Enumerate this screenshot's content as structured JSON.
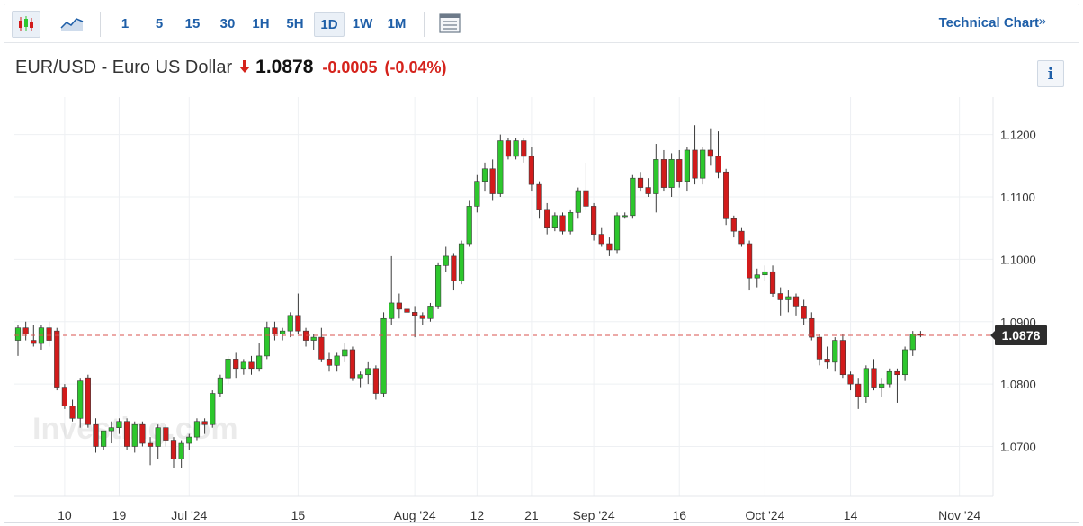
{
  "toolbar": {
    "timeframes": [
      "1",
      "5",
      "15",
      "30",
      "1H",
      "5H",
      "1D",
      "1W",
      "1M"
    ],
    "active_timeframe": "1D",
    "icons": [
      "candlestick-icon",
      "area-chart-icon",
      "data-table-icon"
    ],
    "technical_chart_label": "Technical Chart",
    "technical_chart_chevron": "»"
  },
  "header": {
    "instrument": "EUR/USD - Euro US Dollar",
    "direction_icon": "down-arrow-icon",
    "last_price": "1.0878",
    "change": "-0.0005",
    "change_pct": "(-0.04%)",
    "info_label": "i"
  },
  "watermark": "Investing.com",
  "colors": {
    "up": "#2dc72d",
    "down": "#d21b1b",
    "price_line": "#d9534f",
    "link": "#1f5fa8"
  },
  "chart_data": {
    "type": "candlestick",
    "interval": "1D",
    "ylim": [
      1.062,
      1.126
    ],
    "y_ticks": [
      "1.0700",
      "1.0800",
      "1.0900",
      "1.1000",
      "1.1100",
      "1.1200"
    ],
    "current_price_label": "1.0878",
    "current_price": 1.0878,
    "x_labels": [
      {
        "label": "10",
        "index": 6
      },
      {
        "label": "19",
        "index": 13
      },
      {
        "label": "Jul '24",
        "index": 22
      },
      {
        "label": "15",
        "index": 36
      },
      {
        "label": "Aug '24",
        "index": 51
      },
      {
        "label": "12",
        "index": 59
      },
      {
        "label": "21",
        "index": 66
      },
      {
        "label": "Sep '24",
        "index": 74
      },
      {
        "label": "16",
        "index": 85
      },
      {
        "label": "Oct '24",
        "index": 96
      },
      {
        "label": "14",
        "index": 107
      },
      {
        "label": "Nov '24",
        "index": 121
      }
    ],
    "candles": [
      [
        1.087,
        1.0895,
        1.0845,
        1.089
      ],
      [
        1.089,
        1.09,
        1.087,
        1.088
      ],
      [
        1.087,
        1.0895,
        1.086,
        1.0865
      ],
      [
        1.0865,
        1.0895,
        1.0855,
        1.089
      ],
      [
        1.089,
        1.09,
        1.086,
        1.087
      ],
      [
        1.0885,
        1.089,
        1.079,
        1.0795
      ],
      [
        1.0795,
        1.08,
        1.076,
        1.0765
      ],
      [
        1.0765,
        1.0775,
        1.074,
        1.0745
      ],
      [
        1.0745,
        1.081,
        1.073,
        1.0805
      ],
      [
        1.081,
        1.0815,
        1.073,
        1.0735
      ],
      [
        1.0735,
        1.0745,
        1.069,
        1.07
      ],
      [
        1.07,
        1.0725,
        1.0695,
        1.0725
      ],
      [
        1.0725,
        1.074,
        1.0705,
        1.073
      ],
      [
        1.073,
        1.0745,
        1.072,
        1.074
      ],
      [
        1.074,
        1.0745,
        1.0695,
        1.07
      ],
      [
        1.07,
        1.074,
        1.069,
        1.0735
      ],
      [
        1.0735,
        1.074,
        1.07,
        1.0705
      ],
      [
        1.0705,
        1.0715,
        1.067,
        1.07
      ],
      [
        1.07,
        1.0735,
        1.068,
        1.073
      ],
      [
        1.073,
        1.0735,
        1.07,
        1.071
      ],
      [
        1.071,
        1.0715,
        1.0665,
        1.068
      ],
      [
        1.068,
        1.071,
        1.0665,
        1.0705
      ],
      [
        1.0705,
        1.072,
        1.0695,
        1.0715
      ],
      [
        1.0715,
        1.0745,
        1.071,
        1.074
      ],
      [
        1.074,
        1.0745,
        1.072,
        1.0735
      ],
      [
        1.0735,
        1.079,
        1.073,
        1.0785
      ],
      [
        1.0785,
        1.0815,
        1.078,
        1.081
      ],
      [
        1.081,
        1.0845,
        1.08,
        1.084
      ],
      [
        1.084,
        1.085,
        1.081,
        1.0825
      ],
      [
        1.0825,
        1.084,
        1.0815,
        1.0835
      ],
      [
        1.0835,
        1.0845,
        1.0815,
        1.0825
      ],
      [
        1.0825,
        1.0865,
        1.082,
        1.0845
      ],
      [
        1.0845,
        1.09,
        1.084,
        1.089
      ],
      [
        1.089,
        1.09,
        1.087,
        1.088
      ],
      [
        1.088,
        1.089,
        1.087,
        1.0885
      ],
      [
        1.0885,
        1.0915,
        1.0875,
        1.091
      ],
      [
        1.091,
        1.0945,
        1.088,
        1.0885
      ],
      [
        1.0885,
        1.089,
        1.086,
        1.087
      ],
      [
        1.087,
        1.088,
        1.0855,
        1.0875
      ],
      [
        1.0875,
        1.089,
        1.0835,
        1.084
      ],
      [
        1.084,
        1.085,
        1.082,
        1.083
      ],
      [
        1.083,
        1.085,
        1.082,
        1.0845
      ],
      [
        1.0845,
        1.0865,
        1.0835,
        1.0855
      ],
      [
        1.0855,
        1.086,
        1.0805,
        1.081
      ],
      [
        1.081,
        1.082,
        1.0795,
        1.0815
      ],
      [
        1.0815,
        1.0835,
        1.08,
        1.0825
      ],
      [
        1.0825,
        1.083,
        1.0775,
        1.0785
      ],
      [
        1.0785,
        1.0915,
        1.078,
        1.0905
      ],
      [
        1.0905,
        1.1005,
        1.0895,
        1.093
      ],
      [
        1.093,
        1.0945,
        1.0905,
        1.092
      ],
      [
        1.092,
        1.0935,
        1.089,
        1.0915
      ],
      [
        1.0915,
        1.0925,
        1.0875,
        1.091
      ],
      [
        1.091,
        1.0915,
        1.0895,
        1.0905
      ],
      [
        1.0905,
        1.093,
        1.09,
        1.0925
      ],
      [
        1.0925,
        1.0995,
        1.092,
        1.099
      ],
      [
        1.099,
        1.102,
        1.098,
        1.1005
      ],
      [
        1.1005,
        1.101,
        1.095,
        1.0965
      ],
      [
        1.0965,
        1.103,
        1.096,
        1.1025
      ],
      [
        1.1025,
        1.1095,
        1.102,
        1.1085
      ],
      [
        1.1085,
        1.1135,
        1.1075,
        1.1125
      ],
      [
        1.1125,
        1.1155,
        1.111,
        1.1145
      ],
      [
        1.1145,
        1.116,
        1.1095,
        1.1105
      ],
      [
        1.1105,
        1.12,
        1.11,
        1.119
      ],
      [
        1.119,
        1.1195,
        1.116,
        1.1165
      ],
      [
        1.1165,
        1.1195,
        1.116,
        1.119
      ],
      [
        1.119,
        1.1195,
        1.1155,
        1.1165
      ],
      [
        1.1165,
        1.118,
        1.111,
        1.112
      ],
      [
        1.112,
        1.1125,
        1.1065,
        1.108
      ],
      [
        1.108,
        1.109,
        1.104,
        1.105
      ],
      [
        1.105,
        1.1075,
        1.1045,
        1.107
      ],
      [
        1.107,
        1.1075,
        1.104,
        1.1045
      ],
      [
        1.1045,
        1.108,
        1.104,
        1.1075
      ],
      [
        1.1075,
        1.1115,
        1.1065,
        1.111
      ],
      [
        1.111,
        1.1155,
        1.108,
        1.1085
      ],
      [
        1.1085,
        1.109,
        1.103,
        1.104
      ],
      [
        1.104,
        1.105,
        1.102,
        1.1025
      ],
      [
        1.1025,
        1.1035,
        1.1005,
        1.1015
      ],
      [
        1.1015,
        1.1075,
        1.101,
        1.107
      ],
      [
        1.107,
        1.1075,
        1.1065,
        1.107
      ],
      [
        1.107,
        1.1135,
        1.1065,
        1.113
      ],
      [
        1.113,
        1.114,
        1.111,
        1.1115
      ],
      [
        1.1115,
        1.113,
        1.11,
        1.1105
      ],
      [
        1.1105,
        1.1185,
        1.1075,
        1.116
      ],
      [
        1.116,
        1.1175,
        1.111,
        1.1115
      ],
      [
        1.1115,
        1.117,
        1.11,
        1.116
      ],
      [
        1.116,
        1.1175,
        1.1115,
        1.1125
      ],
      [
        1.1125,
        1.118,
        1.111,
        1.1175
      ],
      [
        1.1175,
        1.1215,
        1.112,
        1.113
      ],
      [
        1.113,
        1.118,
        1.112,
        1.1175
      ],
      [
        1.1175,
        1.121,
        1.115,
        1.1165
      ],
      [
        1.1165,
        1.1205,
        1.113,
        1.114
      ],
      [
        1.114,
        1.1145,
        1.1055,
        1.1065
      ],
      [
        1.1065,
        1.107,
        1.1035,
        1.1045
      ],
      [
        1.1045,
        1.105,
        1.102,
        1.1025
      ],
      [
        1.1025,
        1.103,
        1.095,
        1.097
      ],
      [
        1.097,
        1.0985,
        1.0955,
        1.0975
      ],
      [
        1.0975,
        1.099,
        1.0965,
        1.098
      ],
      [
        1.098,
        1.099,
        1.094,
        1.0945
      ],
      [
        1.0945,
        1.0955,
        1.091,
        1.0935
      ],
      [
        1.0935,
        1.095,
        1.0915,
        1.094
      ],
      [
        1.094,
        1.0945,
        1.091,
        1.0925
      ],
      [
        1.0925,
        1.0935,
        1.0895,
        1.0905
      ],
      [
        1.0905,
        1.0915,
        1.087,
        1.0875
      ],
      [
        1.0875,
        1.088,
        1.083,
        1.084
      ],
      [
        1.084,
        1.086,
        1.0825,
        1.0835
      ],
      [
        1.0835,
        1.0875,
        1.082,
        1.087
      ],
      [
        1.087,
        1.088,
        1.081,
        1.0815
      ],
      [
        1.0815,
        1.082,
        1.079,
        1.08
      ],
      [
        1.08,
        1.081,
        1.076,
        1.078
      ],
      [
        1.078,
        1.083,
        1.077,
        1.0825
      ],
      [
        1.0825,
        1.084,
        1.079,
        1.0795
      ],
      [
        1.0795,
        1.081,
        1.078,
        1.08
      ],
      [
        1.08,
        1.0825,
        1.0795,
        1.082
      ],
      [
        1.082,
        1.0825,
        1.077,
        1.0815
      ],
      [
        1.0815,
        1.086,
        1.0805,
        1.0855
      ],
      [
        1.0855,
        1.0885,
        1.0845,
        1.088
      ],
      [
        1.088,
        1.0885,
        1.0875,
        1.0878
      ]
    ]
  }
}
